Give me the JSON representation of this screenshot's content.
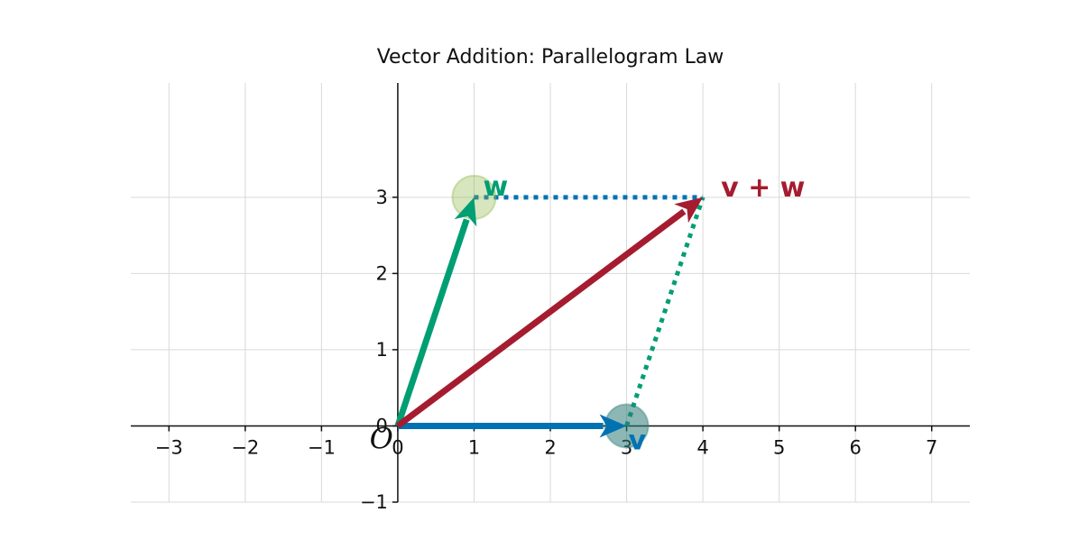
{
  "chart_data": {
    "type": "vector-diagram",
    "title": "Vector Addition: Parallelogram Law",
    "xlim": [
      -3.5,
      7.5
    ],
    "ylim": [
      -1,
      4.5
    ],
    "grid": true,
    "x_ticks": [
      "−3",
      "−2",
      "−1",
      "0",
      "1",
      "2",
      "3",
      "4",
      "5",
      "6",
      "7"
    ],
    "x_tick_values": [
      -3,
      -2,
      -1,
      0,
      1,
      2,
      3,
      4,
      5,
      6,
      7
    ],
    "y_ticks": [
      "−1",
      "0",
      "1",
      "2",
      "3"
    ],
    "y_tick_values": [
      -1,
      0,
      1,
      2,
      3
    ],
    "origin_label": "O",
    "vectors": [
      {
        "name": "v",
        "label": "v",
        "from": [
          0,
          0
        ],
        "to": [
          3,
          0
        ],
        "color": "#0072B2"
      },
      {
        "name": "w",
        "label": "w",
        "from": [
          0,
          0
        ],
        "to": [
          1,
          3
        ],
        "color": "#009E73"
      },
      {
        "name": "v+w",
        "label": "v + w",
        "from": [
          0,
          0
        ],
        "to": [
          4,
          3
        ],
        "color": "#A51C30"
      }
    ],
    "dotted_edges": [
      {
        "from": [
          1,
          3
        ],
        "to": [
          4,
          3
        ],
        "color": "#0072B2"
      },
      {
        "from": [
          3,
          0
        ],
        "to": [
          4,
          3
        ],
        "color": "#009E73"
      }
    ],
    "endpoint_markers": [
      {
        "at": [
          1,
          3
        ],
        "color": "#8DB845"
      },
      {
        "at": [
          3,
          0
        ],
        "color": "#2F7C78"
      }
    ]
  }
}
